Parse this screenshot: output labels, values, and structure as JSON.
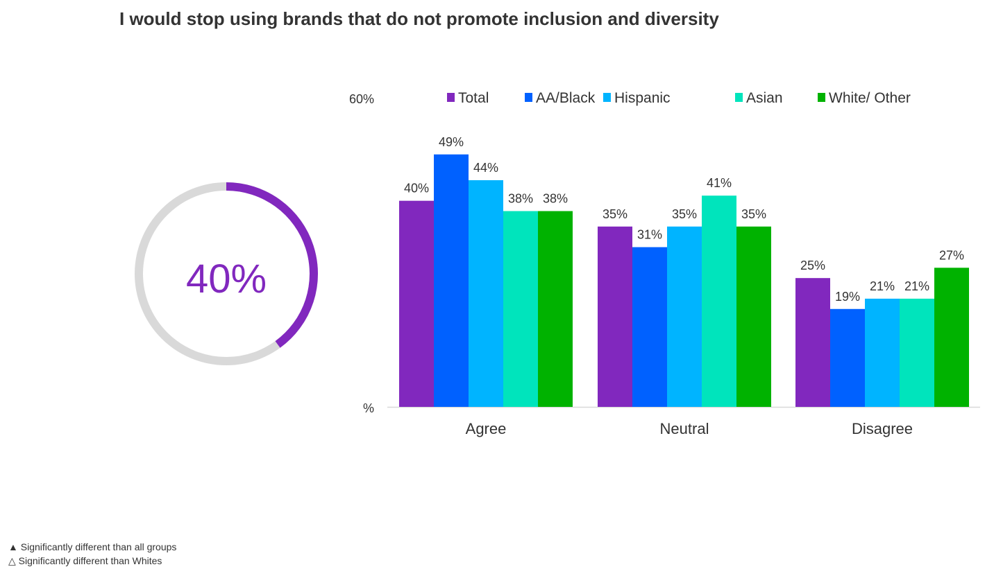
{
  "chart_data": {
    "type": "bar",
    "title": "I would stop using brands that do not promote inclusion and diversity",
    "categories": [
      "Agree",
      "Neutral",
      "Disagree"
    ],
    "series": [
      {
        "name": "Total",
        "color": "#8128BE",
        "values": [
          40,
          35,
          25
        ]
      },
      {
        "name": "AA/Black",
        "color": "#0061FF",
        "values": [
          49,
          31,
          19
        ]
      },
      {
        "name": "Hispanic",
        "color": "#00B4FF",
        "values": [
          44,
          35,
          21
        ]
      },
      {
        "name": "Asian",
        "color": "#00E4BC",
        "values": [
          38,
          41,
          21
        ]
      },
      {
        "name": "White/ Other",
        "color": "#00B200",
        "values": [
          38,
          35,
          27
        ]
      }
    ],
    "y_tick_labels": [
      "%",
      "60%"
    ],
    "ylim": [
      0,
      60
    ],
    "data_label_suffix": "%",
    "legend_placement": "top",
    "grid": false
  },
  "donut": {
    "value": 40,
    "label": "40%",
    "color": "#8128BE",
    "track_color": "#D9D9D9"
  },
  "footnotes": [
    "▲ Significantly different than all groups",
    "△ Significantly different than Whites"
  ]
}
